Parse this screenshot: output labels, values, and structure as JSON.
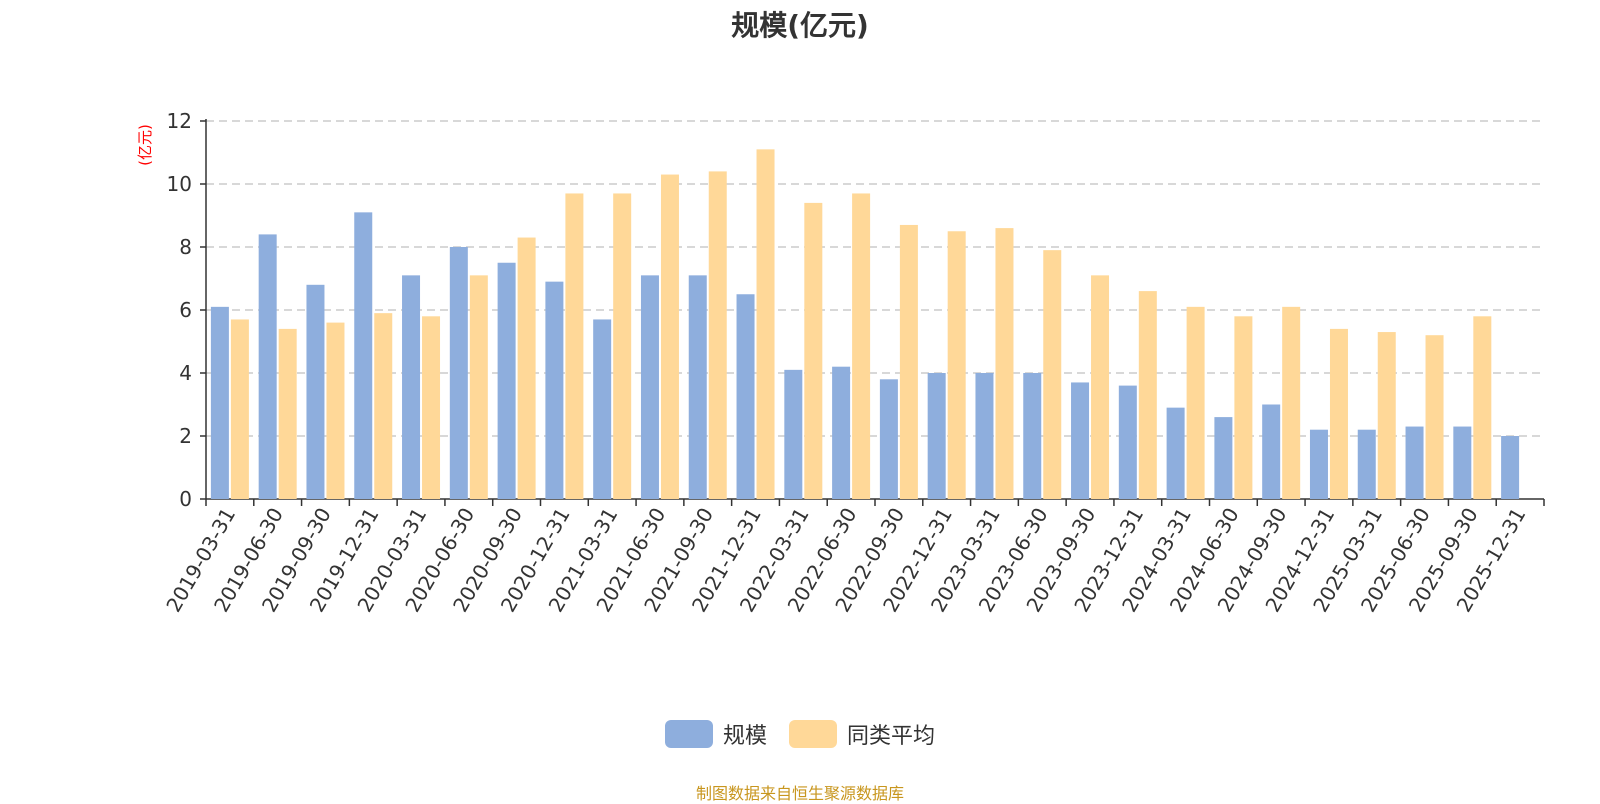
{
  "colors": {
    "series_1": "#8eaedd",
    "series_2": "#ffd898",
    "ylabel": "#ff0000",
    "source": "#c8961e",
    "grid": "#cccccc",
    "axis": "#333333"
  },
  "source_note": "制图数据来自恒生聚源数据库",
  "chart_data": {
    "type": "bar",
    "title": "规模(亿元)",
    "xlabel": "",
    "ylabel": "(亿元)",
    "ylim": [
      0,
      12
    ],
    "yticks": [
      0,
      2,
      4,
      6,
      8,
      10,
      12
    ],
    "grid": "horizontal dashed",
    "legend_position": "bottom-center",
    "categories": [
      "2019-03-31",
      "2019-06-30",
      "2019-09-30",
      "2019-12-31",
      "2020-03-31",
      "2020-06-30",
      "2020-09-30",
      "2020-12-31",
      "2021-03-31",
      "2021-06-30",
      "2021-09-30",
      "2021-12-31",
      "2022-03-31",
      "2022-06-30",
      "2022-09-30",
      "2022-12-31",
      "2023-03-31",
      "2023-06-30",
      "2023-09-30",
      "2023-12-31",
      "2024-03-31",
      "2024-06-30",
      "2024-09-30",
      "2024-12-31",
      "2025-03-31",
      "2025-06-30",
      "2025-09-30",
      "2025-12-31"
    ],
    "series": [
      {
        "name": "规模",
        "values": [
          6.1,
          8.4,
          6.8,
          9.1,
          7.1,
          8.0,
          7.5,
          6.9,
          5.7,
          7.1,
          7.1,
          6.5,
          4.1,
          4.2,
          3.8,
          4.0,
          4.0,
          4.0,
          3.7,
          3.6,
          2.9,
          2.6,
          3.0,
          2.2,
          2.2,
          2.3,
          2.3,
          2.0
        ]
      },
      {
        "name": "同类平均",
        "values": [
          5.7,
          5.4,
          5.6,
          5.9,
          5.8,
          7.1,
          8.3,
          9.7,
          9.7,
          10.3,
          10.4,
          11.1,
          9.4,
          9.7,
          8.7,
          8.5,
          8.6,
          7.9,
          7.1,
          6.6,
          6.1,
          5.8,
          6.1,
          5.4,
          5.3,
          5.2,
          5.8,
          null
        ]
      }
    ]
  }
}
